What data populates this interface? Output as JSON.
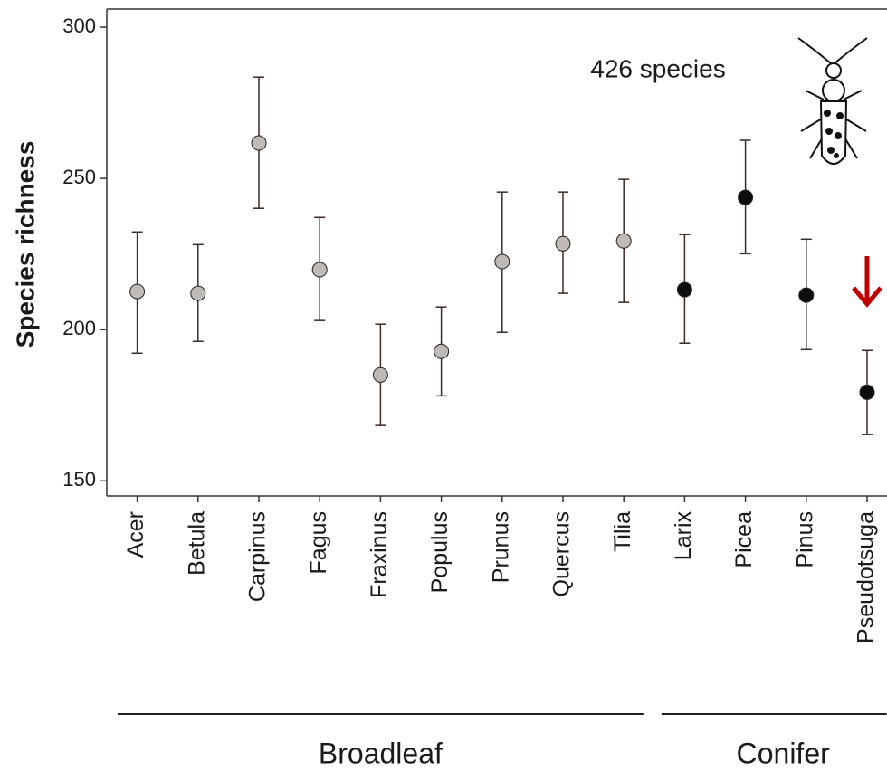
{
  "chart_data": {
    "type": "dot-errorbar",
    "annotation": "426 species",
    "y_label": "Species richness",
    "categories": [
      "Acer",
      "Betula",
      "Carpinus",
      "Fagus",
      "Fraxinus",
      "Populus",
      "Prunus",
      "Quercus",
      "Tilia",
      "Larix",
      "Picea",
      "Pinus",
      "Pseudotsuga"
    ],
    "series": [
      {
        "name": "Broadleaf",
        "color": "#bfbab6",
        "values": [
          212.6,
          212,
          261.7,
          219.8,
          185,
          192.8,
          222.5,
          228.4,
          229.3,
          null,
          null,
          null,
          null
        ],
        "lower": [
          192.2,
          196.1,
          240.1,
          203,
          168.3,
          178.1,
          199.1,
          212,
          209,
          null,
          null,
          null,
          null
        ],
        "upper": [
          232.3,
          228.1,
          283.5,
          237.1,
          201.8,
          207.5,
          245.5,
          245.5,
          249.7,
          null,
          null,
          null,
          null
        ]
      },
      {
        "name": "Conifer",
        "color": "#0d0d0d",
        "values": [
          null,
          null,
          null,
          null,
          null,
          null,
          null,
          null,
          null,
          213.2,
          243.7,
          211.4,
          179.3
        ],
        "lower": [
          null,
          null,
          null,
          null,
          null,
          null,
          null,
          null,
          null,
          195.5,
          225.1,
          193.4,
          165.3
        ],
        "upper": [
          null,
          null,
          null,
          null,
          null,
          null,
          null,
          null,
          null,
          231.4,
          262.6,
          229.9,
          193.1
        ]
      }
    ],
    "ylim": [
      145,
      306
    ],
    "yticks": [
      150,
      200,
      250,
      300
    ]
  }
}
